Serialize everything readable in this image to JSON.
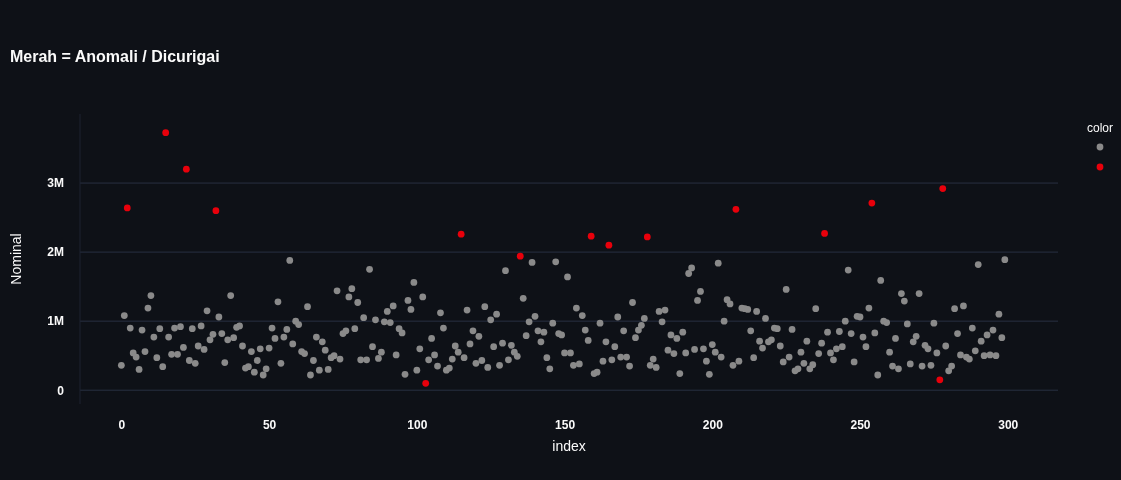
{
  "chart_data": {
    "type": "scatter",
    "title": "Merah = Anomali / Dicurigai",
    "xlabel": "index",
    "ylabel": "Nominal",
    "legend_title": "color",
    "grid": "y",
    "marker": "circle",
    "xlim": [
      -14,
      317
    ],
    "xticks": [
      0,
      50,
      100,
      150,
      200,
      250,
      300
    ],
    "ylim": [
      -200000,
      4000000
    ],
    "yticks": [
      {
        "value": 0,
        "label": "0"
      },
      {
        "value": 1000000,
        "label": "1M"
      },
      {
        "value": 2000000,
        "label": "2M"
      },
      {
        "value": 3000000,
        "label": "3M"
      }
    ],
    "series": [
      {
        "color": "#8a8a8a",
        "x": [
          0,
          1,
          3,
          4,
          5,
          6,
          7,
          8,
          9,
          10,
          11,
          12,
          13,
          14,
          16,
          17,
          18,
          19,
          20,
          21,
          23,
          24,
          25,
          26,
          27,
          28,
          29,
          30,
          31,
          33,
          34,
          35,
          36,
          37,
          38,
          39,
          40,
          41,
          42,
          43,
          44,
          45,
          46,
          47,
          48,
          49,
          50,
          51,
          52,
          53,
          54,
          55,
          56,
          57,
          58,
          59,
          60,
          61,
          62,
          63,
          64,
          65,
          66,
          67,
          68,
          69,
          70,
          71,
          72,
          73,
          74,
          75,
          76,
          77,
          78,
          79,
          80,
          81,
          82,
          83,
          84,
          85,
          86,
          87,
          88,
          89,
          90,
          91,
          92,
          93,
          94,
          95,
          96,
          97,
          98,
          99,
          100,
          101,
          102,
          104,
          105,
          106,
          107,
          108,
          109,
          110,
          111,
          112,
          113,
          114,
          116,
          117,
          118,
          119,
          120,
          121,
          122,
          123,
          124,
          125,
          126,
          127,
          128,
          129,
          130,
          131,
          132,
          133,
          134,
          136,
          137,
          138,
          139,
          140,
          141,
          142,
          143,
          144,
          145,
          146,
          147,
          148,
          149,
          150,
          151,
          152,
          153,
          154,
          155,
          156,
          157,
          158,
          160,
          161,
          162,
          163,
          164,
          166,
          167,
          168,
          169,
          170,
          171,
          172,
          173,
          174,
          175,
          176,
          177,
          179,
          180,
          181,
          182,
          183,
          184,
          185,
          186,
          187,
          188,
          189,
          190,
          191,
          192,
          193,
          194,
          195,
          196,
          197,
          198,
          199,
          200,
          201,
          202,
          203,
          204,
          205,
          206,
          207,
          209,
          210,
          211,
          212,
          213,
          214,
          215,
          216,
          217,
          218,
          219,
          220,
          221,
          222,
          223,
          224,
          225,
          226,
          227,
          228,
          229,
          230,
          231,
          232,
          233,
          234,
          235,
          236,
          237,
          239,
          240,
          241,
          242,
          243,
          244,
          245,
          246,
          247,
          248,
          249,
          250,
          251,
          252,
          253,
          255,
          256,
          257,
          258,
          259,
          260,
          261,
          262,
          263,
          264,
          265,
          266,
          267,
          268,
          269,
          270,
          271,
          272,
          273,
          274,
          275,
          276,
          279,
          280,
          281,
          282,
          283,
          284,
          285,
          286,
          287,
          288,
          289,
          290,
          291,
          292,
          293,
          294,
          295,
          296,
          297,
          298,
          299
        ],
        "values": [
          360000,
          1080000,
          900000,
          540000,
          480000,
          300000,
          870000,
          560000,
          1190000,
          1370000,
          770000,
          470000,
          890000,
          340000,
          770000,
          520000,
          900000,
          520000,
          920000,
          620000,
          430000,
          890000,
          390000,
          640000,
          930000,
          590000,
          1150000,
          730000,
          810000,
          1060000,
          820000,
          400000,
          730000,
          1370000,
          760000,
          910000,
          930000,
          640000,
          320000,
          340000,
          560000,
          260000,
          430000,
          600000,
          220000,
          310000,
          610000,
          900000,
          750000,
          1280000,
          390000,
          770000,
          880000,
          1880000,
          670000,
          1000000,
          950000,
          560000,
          530000,
          1210000,
          220000,
          430000,
          770000,
          290000,
          700000,
          580000,
          300000,
          470000,
          500000,
          1440000,
          450000,
          820000,
          860000,
          1350000,
          1470000,
          890000,
          1270000,
          440000,
          1050000,
          440000,
          1750000,
          630000,
          1020000,
          460000,
          550000,
          990000,
          1140000,
          980000,
          1220000,
          510000,
          890000,
          830000,
          230000,
          1300000,
          1170000,
          1560000,
          290000,
          600000,
          1350000,
          440000,
          750000,
          510000,
          350000,
          1120000,
          900000,
          290000,
          320000,
          450000,
          640000,
          550000,
          470000,
          1160000,
          670000,
          860000,
          390000,
          780000,
          430000,
          1210000,
          330000,
          1020000,
          630000,
          1100000,
          360000,
          680000,
          1730000,
          440000,
          650000,
          550000,
          490000,
          1330000,
          790000,
          990000,
          1850000,
          1070000,
          860000,
          700000,
          840000,
          470000,
          310000,
          970000,
          1860000,
          820000,
          800000,
          540000,
          1640000,
          540000,
          360000,
          1190000,
          380000,
          1080000,
          870000,
          720000,
          240000,
          260000,
          970000,
          420000,
          700000,
          440000,
          630000,
          1060000,
          480000,
          860000,
          480000,
          350000,
          1270000,
          760000,
          870000,
          940000,
          1040000,
          360000,
          450000,
          330000,
          1140000,
          990000,
          1160000,
          580000,
          800000,
          530000,
          750000,
          240000,
          840000,
          540000,
          1690000,
          1770000,
          590000,
          1300000,
          1430000,
          600000,
          420000,
          230000,
          660000,
          550000,
          1840000,
          480000,
          1000000,
          1310000,
          1250000,
          360000,
          420000,
          1190000,
          1180000,
          1170000,
          860000,
          470000,
          1140000,
          710000,
          610000,
          1040000,
          700000,
          730000,
          900000,
          890000,
          640000,
          410000,
          1460000,
          480000,
          880000,
          280000,
          310000,
          550000,
          390000,
          710000,
          310000,
          370000,
          1180000,
          530000,
          680000,
          840000,
          540000,
          440000,
          600000,
          850000,
          630000,
          1000000,
          1740000,
          820000,
          410000,
          1070000,
          1060000,
          770000,
          630000,
          1190000,
          830000,
          220000,
          1590000,
          1000000,
          980000,
          550000,
          350000,
          750000,
          310000,
          1400000,
          1290000,
          960000,
          380000,
          700000,
          780000,
          1400000,
          350000,
          650000,
          600000,
          360000,
          970000,
          540000,
          640000,
          280000,
          350000,
          1180000,
          820000,
          510000,
          1220000,
          480000,
          450000,
          900000,
          570000,
          1820000,
          710000,
          500000,
          800000,
          510000,
          870000,
          500000,
          1100000,
          760000,
          1890000
        ]
      },
      {
        "color": "#e8000b",
        "x": [
          2,
          15,
          22,
          32,
          103,
          115,
          135,
          159,
          165,
          178,
          208,
          238,
          254,
          277,
          278
        ],
        "values": [
          2640000,
          3730000,
          3200000,
          2600000,
          100000,
          2260000,
          1940000,
          2230000,
          2100000,
          2220000,
          2620000,
          2270000,
          2710000,
          150000,
          2920000
        ]
      }
    ]
  }
}
